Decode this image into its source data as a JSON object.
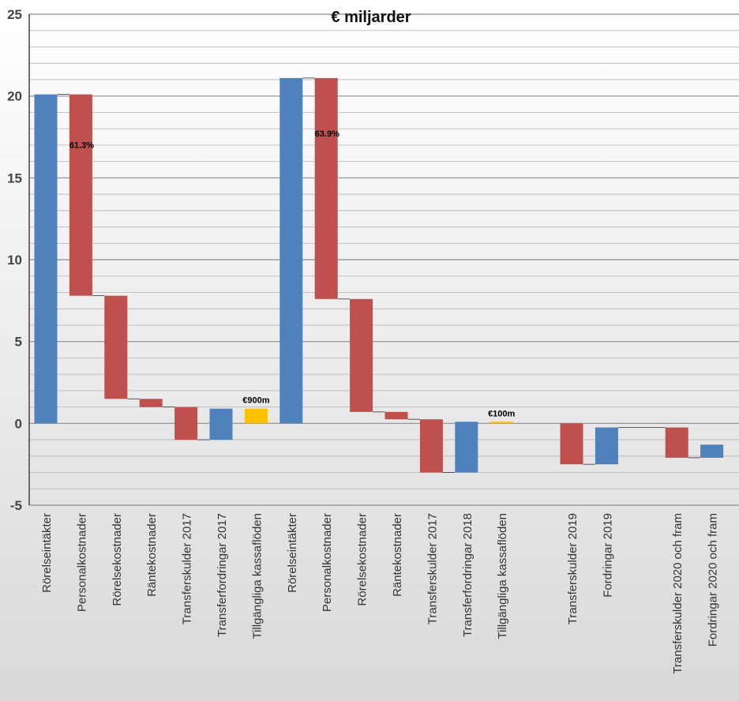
{
  "chart_data": {
    "type": "waterfall",
    "title": "€ miljarder",
    "xlabel": "",
    "ylabel": "",
    "ylim": [
      -5,
      25
    ],
    "yticks": [
      -5,
      0,
      5,
      10,
      15,
      20,
      25
    ],
    "grid_step": 1,
    "colors": {
      "income": "#4f81bd",
      "cost": "#c0504d",
      "cash": "#ffc000"
    },
    "bars": [
      {
        "label": "Rörelseintäkter",
        "start": 0,
        "end": 20.1,
        "kind": "income"
      },
      {
        "label": "Personalkostnader",
        "start": 20.1,
        "end": 7.8,
        "kind": "cost",
        "annotation": "61.3%"
      },
      {
        "label": "Rörelsekostnader",
        "start": 7.8,
        "end": 1.5,
        "kind": "cost"
      },
      {
        "label": "Räntekostnader",
        "start": 1.5,
        "end": 1.0,
        "kind": "cost"
      },
      {
        "label": "Transferskulder 2017",
        "start": 1.0,
        "end": -1.0,
        "kind": "cost"
      },
      {
        "label": "Transferfordringar 2017",
        "start": -1.0,
        "end": 0.9,
        "kind": "income"
      },
      {
        "label": "Tillgängliga kassaflöden",
        "start": 0,
        "end": 0.9,
        "kind": "cash",
        "annotation": "€900m"
      },
      {
        "label": "Rörelseintäkter",
        "start": 0,
        "end": 21.1,
        "kind": "income"
      },
      {
        "label": "Personalkostnader",
        "start": 21.1,
        "end": 7.6,
        "kind": "cost",
        "annotation": "63.9%"
      },
      {
        "label": "Rörelsekostnader",
        "start": 7.6,
        "end": 0.7,
        "kind": "cost"
      },
      {
        "label": "Räntekostnader",
        "start": 0.7,
        "end": 0.25,
        "kind": "cost"
      },
      {
        "label": "Transferskulder 2017",
        "start": 0.25,
        "end": -3.0,
        "kind": "cost"
      },
      {
        "label": "Transferfordringar 2018",
        "start": -3.0,
        "end": 0.1,
        "kind": "income"
      },
      {
        "label": "Tillgängliga kassaflöden",
        "start": 0,
        "end": 0.1,
        "kind": "cash",
        "annotation": "€100m"
      },
      {
        "label": "",
        "start": null,
        "end": null,
        "kind": "gap"
      },
      {
        "label": "Transferskulder 2019",
        "start": 0,
        "end": -2.5,
        "kind": "cost"
      },
      {
        "label": "Fordringar  2019",
        "start": -2.5,
        "end": -0.25,
        "kind": "income"
      },
      {
        "label": "",
        "start": null,
        "end": null,
        "kind": "gap"
      },
      {
        "label": "Transferskulder 2020 och fram",
        "start": -0.25,
        "end": -2.1,
        "kind": "cost"
      },
      {
        "label": "Fordringar  2020 och fram",
        "start": -2.1,
        "end": -1.3,
        "kind": "income"
      }
    ]
  }
}
